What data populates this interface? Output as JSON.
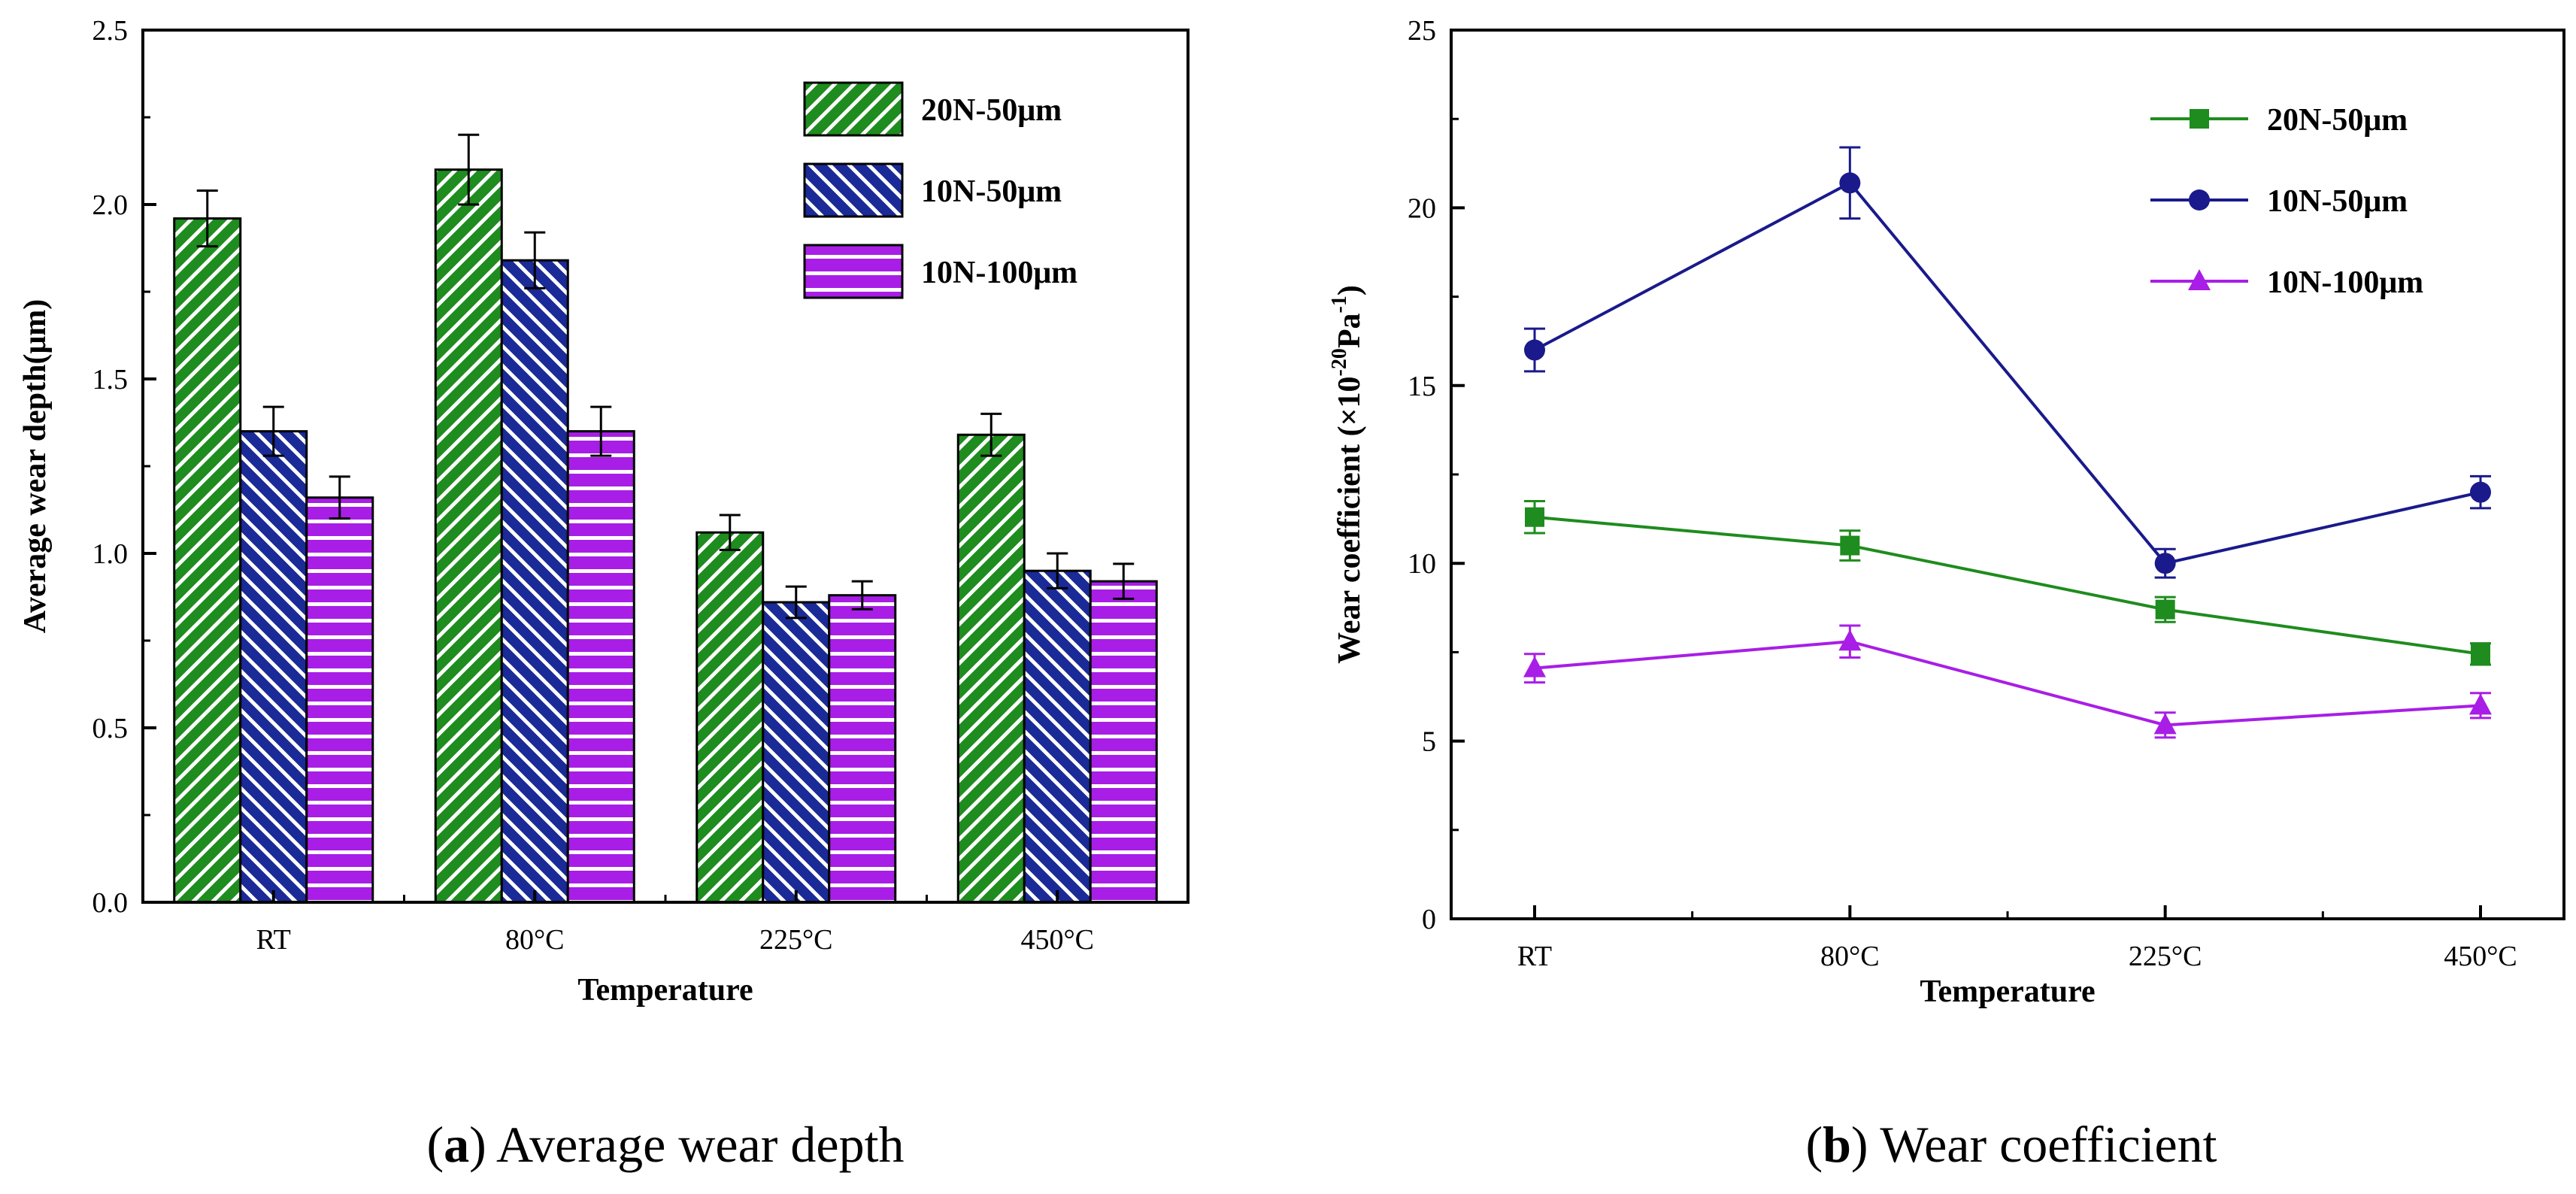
{
  "chart_data": [
    {
      "type": "bar",
      "categories": [
        "RT",
        "80°C",
        "225°C",
        "450°C"
      ],
      "series": [
        {
          "name": "20N-50μm",
          "values": [
            1.96,
            2.1,
            1.06,
            1.34
          ],
          "errors": [
            0.08,
            0.1,
            0.05,
            0.06
          ],
          "color": "#1e8c1e",
          "pattern": "diagonal-right"
        },
        {
          "name": "10N-50μm",
          "values": [
            1.35,
            1.84,
            0.86,
            0.95
          ],
          "errors": [
            0.07,
            0.08,
            0.045,
            0.05
          ],
          "color": "#1a2a96",
          "pattern": "diagonal-left"
        },
        {
          "name": "10N-100μm",
          "values": [
            1.16,
            1.35,
            0.88,
            0.92
          ],
          "errors": [
            0.06,
            0.07,
            0.04,
            0.05
          ],
          "color": "#a81ee6",
          "pattern": "horizontal"
        }
      ],
      "xlabel": "Temperature",
      "ylabel": "Average wear depth(μm)",
      "ylim": [
        0,
        2.5
      ],
      "yticks": [
        "0.0",
        "0.5",
        "1.0",
        "1.5",
        "2.0",
        "2.5"
      ],
      "legend_position": "top-right",
      "caption": {
        "letter": "a",
        "text": "Average wear depth"
      }
    },
    {
      "type": "line",
      "categories": [
        "RT",
        "80°C",
        "225°C",
        "450°C"
      ],
      "series": [
        {
          "name": "20N-50μm",
          "values": [
            11.3,
            10.5,
            8.7,
            7.45
          ],
          "errors": [
            0.45,
            0.42,
            0.35,
            0.3
          ],
          "color": "#1e8c1e",
          "marker": "square"
        },
        {
          "name": "10N-50μm",
          "values": [
            16.0,
            20.7,
            10.0,
            12.0
          ],
          "errors": [
            0.6,
            1.0,
            0.4,
            0.45
          ],
          "color": "#1a1a8c",
          "marker": "circle"
        },
        {
          "name": "10N-100μm",
          "values": [
            7.05,
            7.8,
            5.45,
            6.0
          ],
          "errors": [
            0.4,
            0.45,
            0.35,
            0.35
          ],
          "color": "#a81ee6",
          "marker": "triangle"
        }
      ],
      "xlabel": "Temperature",
      "ylabel_main": "Wear coefficient (×10",
      "ylabel_exp1": "-20",
      "ylabel_mid": "Pa",
      "ylabel_exp2": "-1",
      "ylabel_end": ")",
      "ylim": [
        0,
        25
      ],
      "yticks": [
        "0",
        "5",
        "10",
        "15",
        "20",
        "25"
      ],
      "legend_position": "top-right",
      "caption": {
        "letter": "b",
        "text": "Wear coefficient"
      }
    }
  ]
}
